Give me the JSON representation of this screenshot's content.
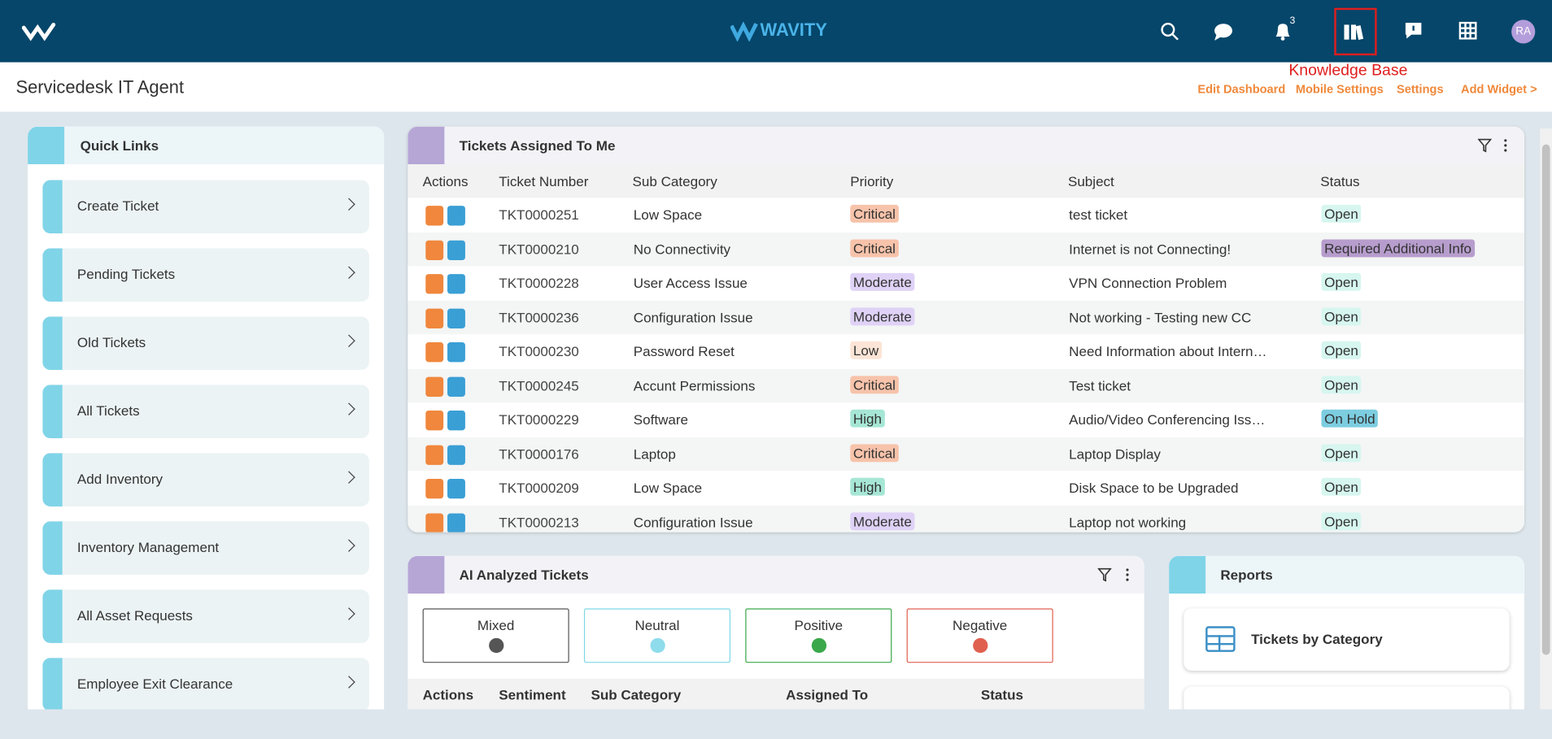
{
  "nav": {
    "logo": "WAVITY",
    "notification_count": "3",
    "highlight_label": "Knowledge Base",
    "avatar": "RA"
  },
  "header": {
    "title": "Servicedesk IT Agent",
    "links": [
      "Edit Dashboard",
      "Mobile Settings",
      "Settings",
      "Add Widget >"
    ]
  },
  "quick_links": {
    "title": "Quick Links",
    "items": [
      "Create Ticket",
      "Pending Tickets",
      "Old Tickets",
      "All Tickets",
      "Add Inventory",
      "Inventory Management",
      "All Asset Requests",
      "Employee Exit Clearance"
    ]
  },
  "tickets": {
    "title": "Tickets Assigned To Me",
    "columns": [
      "Actions",
      "Ticket Number",
      "Sub Category",
      "Priority",
      "Subject",
      "Status"
    ],
    "rows": [
      [
        "TKT0000251",
        "Low Space",
        "Critical",
        "test ticket",
        "Open"
      ],
      [
        "TKT0000210",
        "No Connectivity",
        "Critical",
        "Internet is not Connecting!",
        "Required Additional Info"
      ],
      [
        "TKT0000228",
        "User Access Issue",
        "Moderate",
        "VPN Connection Problem",
        "Open"
      ],
      [
        "TKT0000236",
        "Configuration Issue",
        "Moderate",
        "Not working - Testing new CC",
        "Open"
      ],
      [
        "TKT0000230",
        "Password Reset",
        "Low",
        "Need Information about Intern…",
        "Open"
      ],
      [
        "TKT0000245",
        "Accunt Permissions",
        "Critical",
        "Test ticket",
        "Open"
      ],
      [
        "TKT0000229",
        "Software",
        "High",
        "Audio/Video Conferencing Iss…",
        "On Hold"
      ],
      [
        "TKT0000176",
        "Laptop",
        "Critical",
        "Laptop Display",
        "Open"
      ],
      [
        "TKT0000209",
        "Low Space",
        "High",
        "Disk Space to be Upgraded",
        "Open"
      ],
      [
        "TKT0000213",
        "Configuration Issue",
        "Moderate",
        "Laptop not working",
        "Open"
      ]
    ]
  },
  "ai": {
    "title": "AI Analyzed Tickets",
    "sentiments": [
      "Mixed",
      "Neutral",
      "Positive",
      "Negative"
    ],
    "columns": [
      "Actions",
      "Sentiment",
      "Sub Category",
      "Assigned To",
      "Status"
    ]
  },
  "reports": {
    "title": "Reports",
    "items": [
      "Tickets by Category"
    ]
  }
}
